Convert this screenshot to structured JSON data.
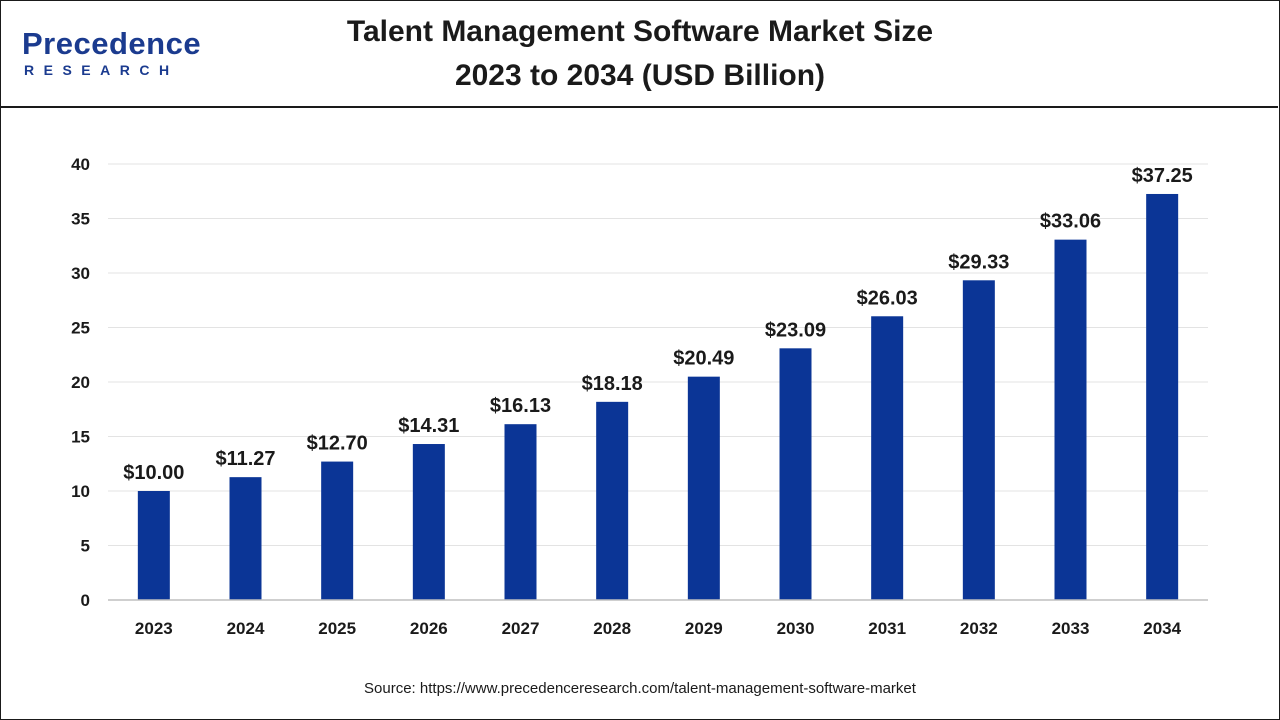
{
  "logo": {
    "main": "Precedence",
    "sub": "RESEARCH",
    "color": "#1b3b8f"
  },
  "header": {
    "title_line1": "Talent Management Software Market Size",
    "title_line2": "2023 to 2034 (USD Billion)"
  },
  "source": "Source: https://www.precedenceresearch.com/talent-management-software-market",
  "chart_data": {
    "type": "bar",
    "title": "Talent Management Software Market Size 2023 to 2034 (USD Billion)",
    "categories": [
      "2023",
      "2024",
      "2025",
      "2026",
      "2027",
      "2028",
      "2029",
      "2030",
      "2031",
      "2032",
      "2033",
      "2034"
    ],
    "values": [
      10.0,
      11.27,
      12.7,
      14.31,
      16.13,
      18.18,
      20.49,
      23.09,
      26.03,
      29.33,
      33.06,
      37.25
    ],
    "data_labels": [
      "$10.00",
      "$11.27",
      "$12.70",
      "$14.31",
      "$16.13",
      "$18.18",
      "$20.49",
      "$23.09",
      "$26.03",
      "$29.33",
      "$33.06",
      "$37.25"
    ],
    "yticks": [
      "0",
      "5",
      "10",
      "15",
      "20",
      "25",
      "30",
      "35",
      "40"
    ],
    "ylim": [
      0,
      40
    ],
    "xlabel": "",
    "ylabel": "",
    "grid": true,
    "legend": "none",
    "bar_color": "#0b3596"
  }
}
